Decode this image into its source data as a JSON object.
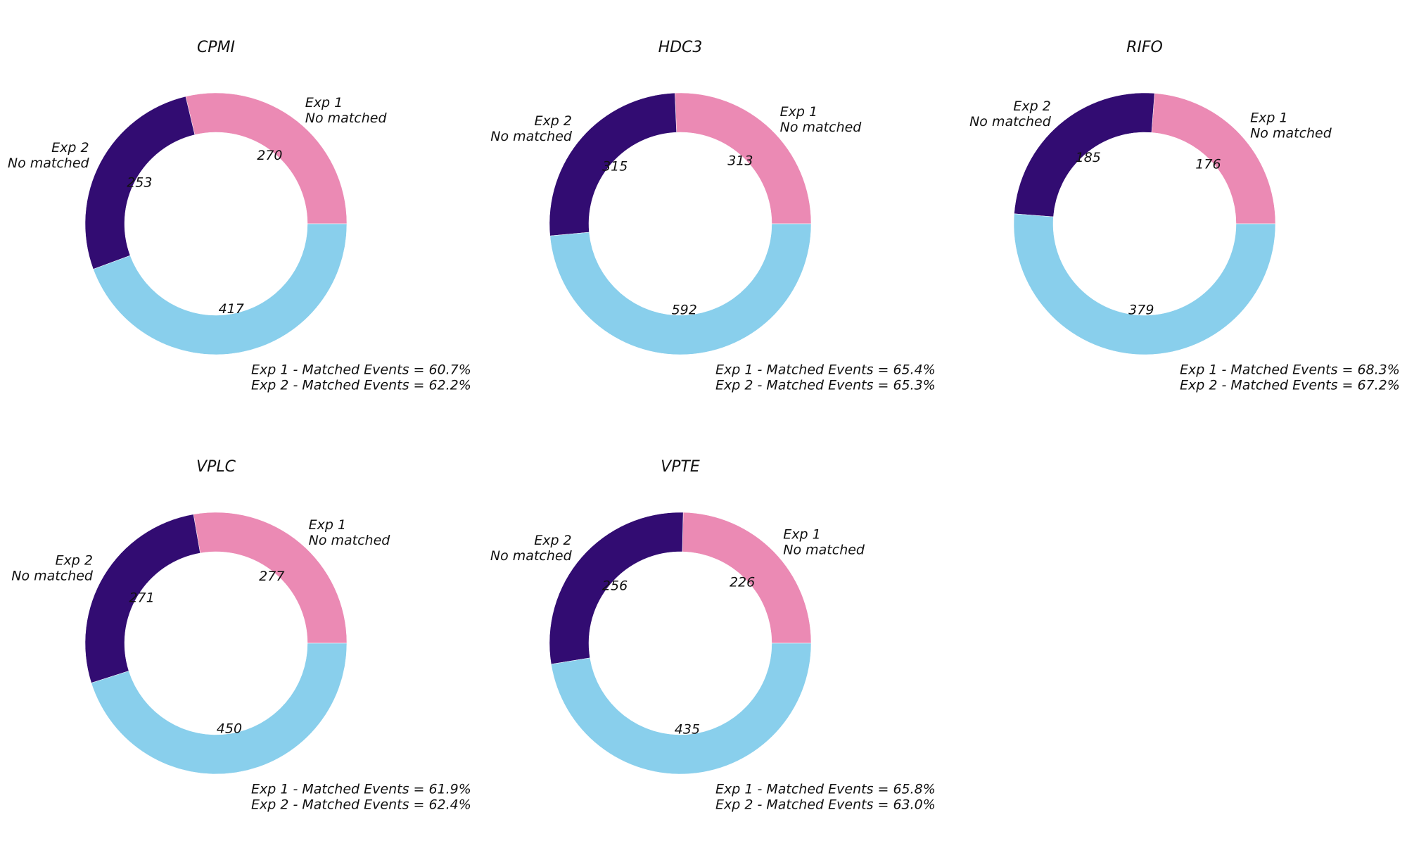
{
  "colors": {
    "exp1_no_matched": "#eb8ab4",
    "exp2_no_matched": "#320c72",
    "matched": "#89cfec"
  },
  "chart_data": [
    {
      "type": "pie",
      "title": "CPMI",
      "slices": [
        {
          "label": "Exp 1\n No matched",
          "value": 270
        },
        {
          "label": "Exp 2\nNo matched",
          "value": 253
        },
        {
          "label": "",
          "value": 417
        }
      ],
      "matched_lines": [
        "Exp 1 - Matched Events = 60.7%",
        "Exp 2 - Matched Events = 62.2%"
      ]
    },
    {
      "type": "pie",
      "title": "HDC3",
      "slices": [
        {
          "label": "Exp 1\n No matched",
          "value": 313
        },
        {
          "label": "Exp 2\nNo matched",
          "value": 315
        },
        {
          "label": "",
          "value": 592
        }
      ],
      "matched_lines": [
        "Exp 1 - Matched Events = 65.4%",
        "Exp 2 - Matched Events = 65.3%"
      ]
    },
    {
      "type": "pie",
      "title": "RIFO",
      "slices": [
        {
          "label": "Exp 1\n No matched",
          "value": 176
        },
        {
          "label": "Exp 2\nNo matched",
          "value": 185
        },
        {
          "label": "",
          "value": 379
        }
      ],
      "matched_lines": [
        "Exp 1 - Matched Events = 68.3%",
        "Exp 2 - Matched Events = 67.2%"
      ]
    },
    {
      "type": "pie",
      "title": "VPLC",
      "slices": [
        {
          "label": "Exp 1\n No matched",
          "value": 277
        },
        {
          "label": "Exp 2\nNo matched",
          "value": 271
        },
        {
          "label": "",
          "value": 450
        }
      ],
      "matched_lines": [
        "Exp 1 - Matched Events = 61.9%",
        "Exp 2 - Matched Events = 62.4%"
      ]
    },
    {
      "type": "pie",
      "title": "VPTE",
      "slices": [
        {
          "label": "Exp 1\n No matched",
          "value": 226
        },
        {
          "label": "Exp 2\nNo matched",
          "value": 256
        },
        {
          "label": "",
          "value": 435
        }
      ],
      "matched_lines": [
        "Exp 1 - Matched Events = 65.8%",
        "Exp 2 - Matched Events = 63.0%"
      ]
    }
  ]
}
